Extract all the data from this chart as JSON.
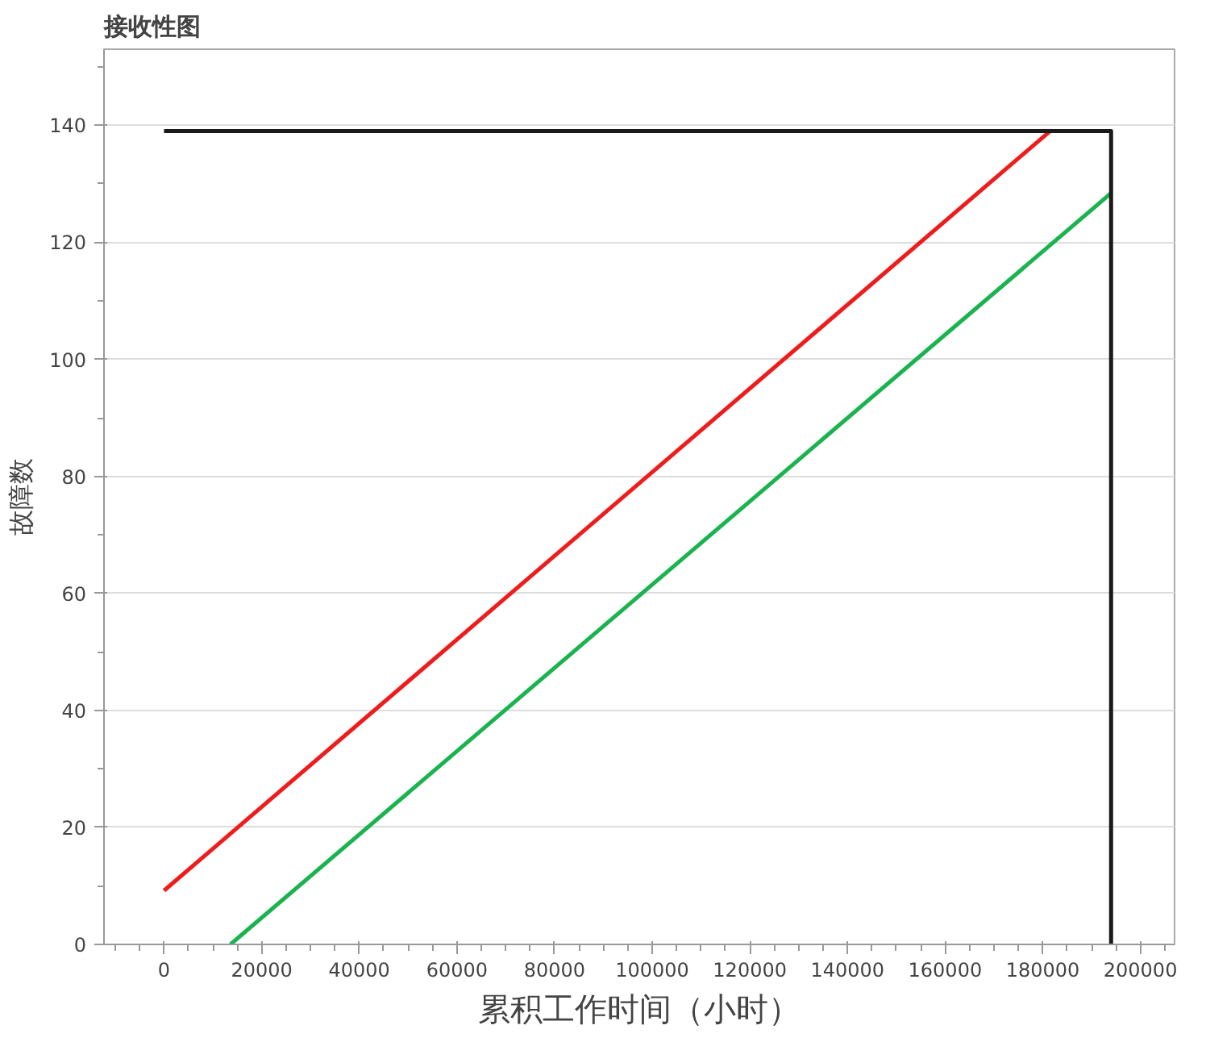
{
  "chart_data": {
    "type": "line",
    "title": "接收性图",
    "xlabel": "累积工作时间（小时）",
    "ylabel": "故障数",
    "series": [
      {
        "color": "#ee1c1c",
        "x": [
          0,
          181500
        ],
        "values": [
          9.2,
          139
        ]
      },
      {
        "color": "#1ab350",
        "x": [
          13600,
          194000
        ],
        "values": [
          0,
          128.4
        ]
      },
      {
        "color": "#1a1a1a",
        "x": [
          0,
          194000,
          194000
        ],
        "values": [
          139,
          139,
          0
        ]
      }
    ],
    "xlim": [
      -12300,
      207000
    ],
    "ylim": [
      0,
      153
    ],
    "xticks": [
      0,
      20000,
      40000,
      60000,
      80000,
      100000,
      120000,
      140000,
      160000,
      180000,
      200000
    ],
    "yticks": [
      0,
      20,
      40,
      60,
      80,
      100,
      120,
      140
    ],
    "grid": "y",
    "marker": "none",
    "line_style": "solid"
  }
}
